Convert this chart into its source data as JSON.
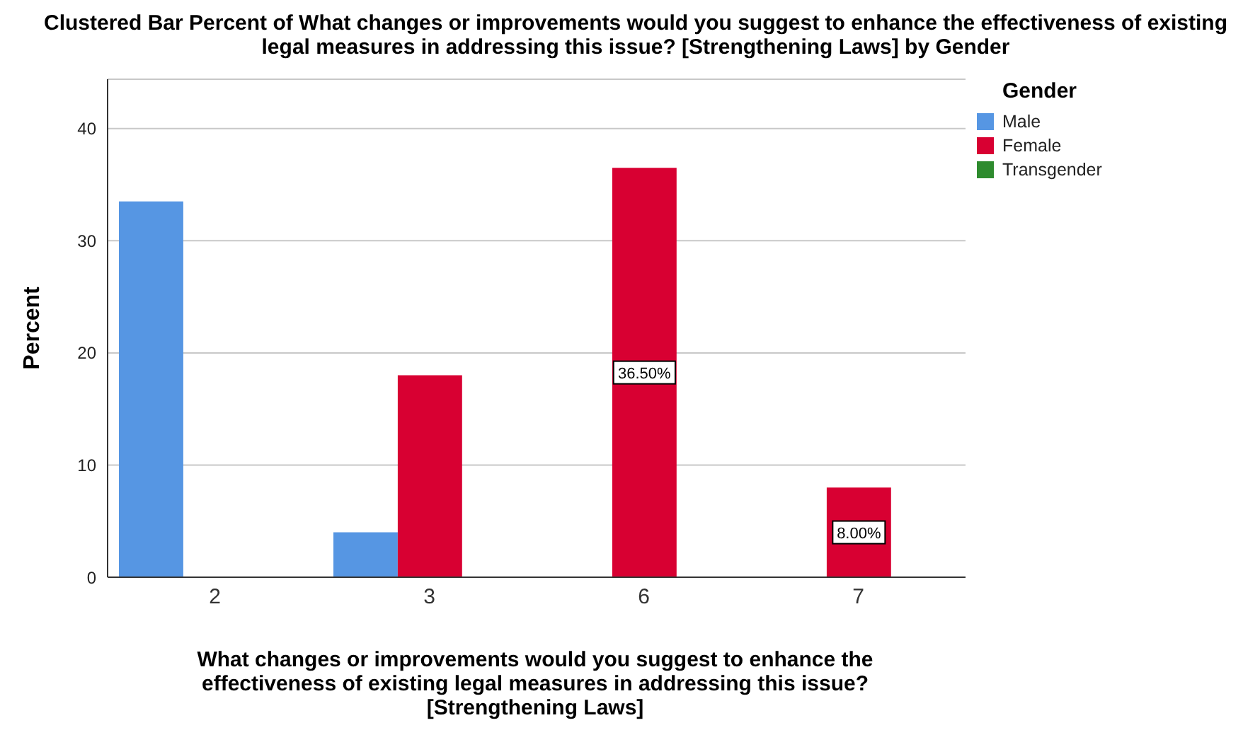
{
  "chart_data": {
    "type": "bar",
    "title": "Clustered Bar Percent of What changes or improvements would you suggest to enhance the effectiveness of existing legal measures in addressing this issue? [Strengthening Laws] by Gender",
    "xlabel": "What changes or improvements would you suggest to enhance the effectiveness of existing legal measures in addressing this issue? [Strengthening Laws]",
    "ylabel": "Percent",
    "legend_title": "Gender",
    "categories": [
      "2",
      "3",
      "6",
      "7"
    ],
    "series": [
      {
        "name": "Male",
        "color": "#5696e3",
        "values": [
          33.5,
          4,
          null,
          null
        ]
      },
      {
        "name": "Female",
        "color": "#d80032",
        "values": [
          null,
          18,
          36.5,
          8
        ],
        "value_labels": [
          null,
          null,
          "36.50%",
          "8.00%"
        ]
      },
      {
        "name": "Transgender",
        "color": "#2e8b2e",
        "values": [
          null,
          null,
          null,
          null
        ]
      }
    ],
    "ylim": [
      0,
      44.4
    ],
    "yticks": [
      0,
      10,
      20,
      30,
      40
    ],
    "grid": "y",
    "legend": "top right"
  }
}
